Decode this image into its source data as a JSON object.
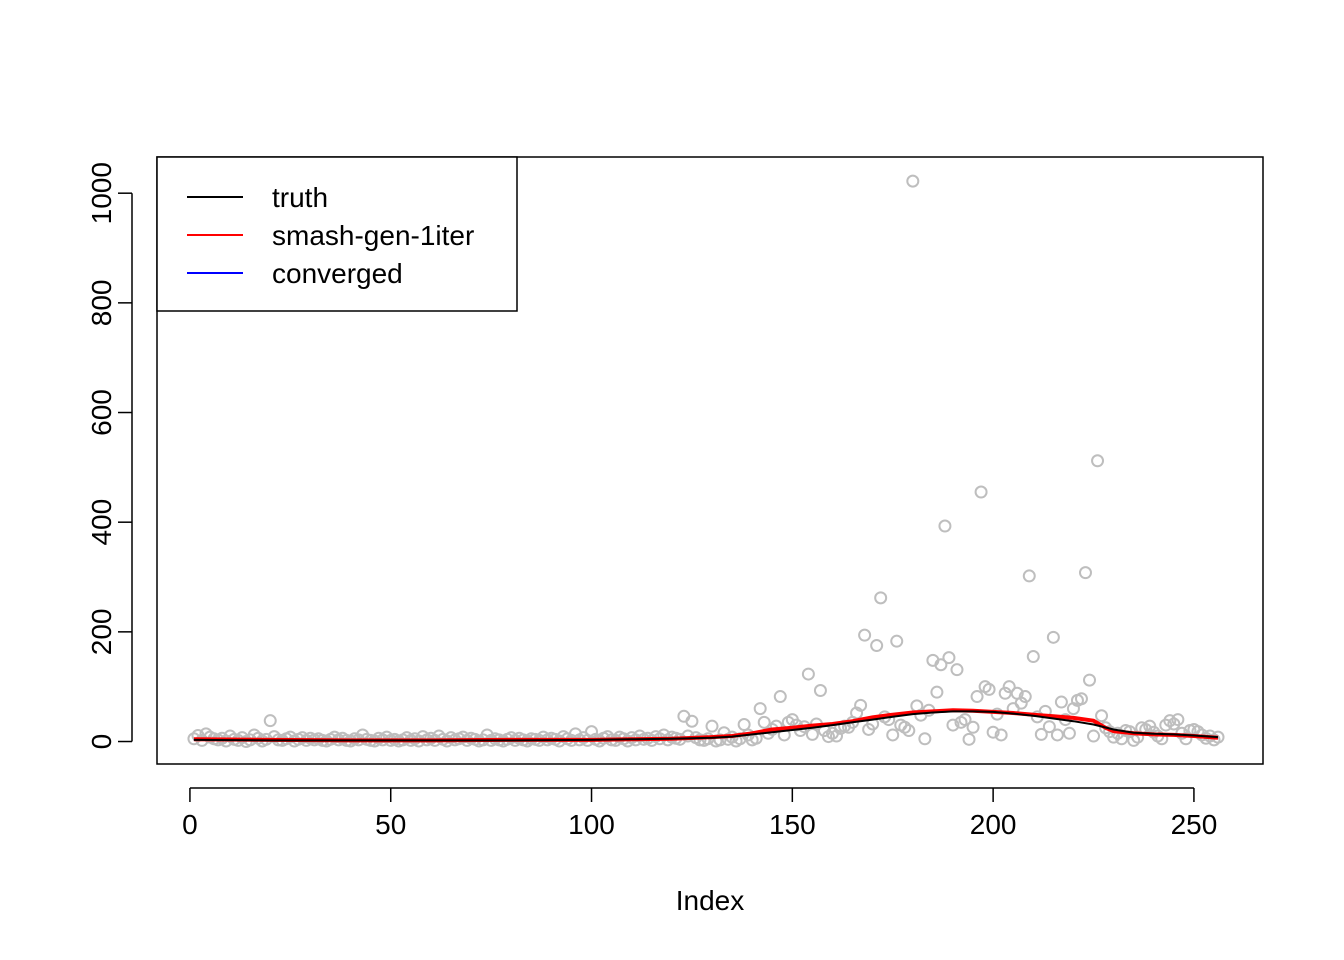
{
  "chart_data": {
    "type": "scatter",
    "title": "",
    "xlabel": "Index",
    "ylabel": "",
    "xlim": [
      -8.2,
      267.2
    ],
    "ylim": [
      -41,
      1066
    ],
    "x_ticks": [
      0,
      50,
      100,
      150,
      200,
      250
    ],
    "y_ticks": [
      0,
      200,
      400,
      600,
      800,
      1000
    ],
    "grid": false,
    "legend_position": "top-left",
    "colors": {
      "points": "#bebebe",
      "truth": "#000000",
      "smash": "#ff0000",
      "converged": "#0000ff"
    },
    "points": {
      "x": [
        1,
        2,
        3,
        4,
        5,
        6,
        7,
        8,
        9,
        10,
        11,
        12,
        13,
        14,
        15,
        16,
        17,
        18,
        19,
        20,
        21,
        22,
        23,
        24,
        25,
        26,
        27,
        28,
        29,
        30,
        31,
        32,
        33,
        34,
        35,
        36,
        37,
        38,
        39,
        40,
        41,
        42,
        43,
        44,
        45,
        46,
        47,
        48,
        49,
        50,
        51,
        52,
        53,
        54,
        55,
        56,
        57,
        58,
        59,
        60,
        61,
        62,
        63,
        64,
        65,
        66,
        67,
        68,
        69,
        70,
        71,
        72,
        73,
        74,
        75,
        76,
        77,
        78,
        79,
        80,
        81,
        82,
        83,
        84,
        85,
        86,
        87,
        88,
        89,
        90,
        91,
        92,
        93,
        94,
        95,
        96,
        97,
        98,
        99,
        100,
        101,
        102,
        103,
        104,
        105,
        106,
        107,
        108,
        109,
        110,
        111,
        112,
        113,
        114,
        115,
        116,
        117,
        118,
        119,
        120,
        121,
        122,
        123,
        124,
        125,
        126,
        127,
        128,
        129,
        130,
        131,
        132,
        133,
        134,
        135,
        136,
        137,
        138,
        139,
        140,
        141,
        142,
        143,
        144,
        145,
        146,
        147,
        148,
        149,
        150,
        151,
        152,
        153,
        154,
        155,
        156,
        157,
        158,
        159,
        160,
        161,
        162,
        163,
        164,
        165,
        166,
        167,
        168,
        169,
        170,
        171,
        172,
        173,
        174,
        175,
        176,
        177,
        178,
        179,
        180,
        181,
        182,
        183,
        184,
        185,
        186,
        187,
        188,
        189,
        190,
        191,
        192,
        193,
        194,
        195,
        196,
        197,
        198,
        199,
        200,
        201,
        202,
        203,
        204,
        205,
        206,
        207,
        208,
        209,
        210,
        211,
        212,
        213,
        214,
        215,
        216,
        217,
        218,
        219,
        220,
        221,
        222,
        223,
        224,
        225,
        226,
        227,
        228,
        229,
        230,
        231,
        232,
        233,
        234,
        235,
        236,
        237,
        238,
        239,
        240,
        241,
        242,
        243,
        244,
        245,
        246,
        247,
        248,
        249,
        250,
        251,
        252,
        253,
        254,
        255,
        256
      ],
      "y": [
        5,
        11,
        2,
        14,
        8,
        5,
        3,
        6,
        1,
        10,
        4,
        2,
        7,
        0,
        3,
        12,
        6,
        1,
        4,
        38,
        9,
        3,
        2,
        5,
        8,
        1,
        4,
        7,
        2,
        6,
        3,
        5,
        2,
        1,
        4,
        8,
        3,
        6,
        2,
        1,
        5,
        3,
        12,
        4,
        2,
        1,
        6,
        3,
        8,
        2,
        4,
        1,
        3,
        7,
        2,
        5,
        1,
        9,
        3,
        6,
        2,
        10,
        4,
        1,
        7,
        3,
        5,
        8,
        2,
        6,
        4,
        1,
        3,
        12,
        2,
        5,
        3,
        1,
        4,
        7,
        2,
        6,
        3,
        1,
        5,
        4,
        2,
        8,
        3,
        6,
        4,
        1,
        9,
        5,
        2,
        14,
        3,
        7,
        2,
        18,
        4,
        1,
        6,
        9,
        3,
        2,
        8,
        5,
        1,
        7,
        3,
        10,
        4,
        6,
        2,
        9,
        5,
        12,
        3,
        8,
        6,
        4,
        46,
        10,
        37,
        7,
        3,
        2,
        5,
        28,
        1,
        3,
        16,
        4,
        8,
        1,
        5,
        31,
        12,
        3,
        6,
        60,
        35,
        15,
        22,
        28,
        82,
        12,
        35,
        40,
        30,
        20,
        27,
        123,
        13,
        32,
        93,
        20,
        9,
        15,
        10,
        24,
        28,
        26,
        35,
        52,
        66,
        194,
        22,
        32,
        175,
        262,
        45,
        40,
        12,
        183,
        30,
        26,
        20,
        1022,
        65,
        48,
        5,
        57,
        148,
        90,
        140,
        393,
        153,
        30,
        131,
        35,
        40,
        4,
        26,
        82,
        455,
        100,
        95,
        17,
        50,
        12,
        88,
        100,
        60,
        88,
        70,
        82,
        302,
        155,
        45,
        13,
        55,
        27,
        190,
        12,
        72,
        40,
        15,
        60,
        75,
        78,
        308,
        112,
        10,
        512,
        47,
        25,
        18,
        8,
        15,
        5,
        20,
        18,
        2,
        8,
        25,
        22,
        28,
        17,
        10,
        5,
        30,
        38,
        32,
        40,
        15,
        5,
        20,
        22,
        18,
        12,
        6,
        10,
        3,
        8
      ]
    },
    "series": [
      {
        "name": "truth",
        "x": [
          1,
          20,
          40,
          60,
          80,
          100,
          110,
          120,
          130,
          135,
          140,
          145,
          150,
          155,
          160,
          165,
          170,
          175,
          180,
          185,
          190,
          195,
          200,
          205,
          210,
          215,
          220,
          225,
          230,
          235,
          240,
          245,
          250,
          256
        ],
        "y": [
          3,
          2,
          2,
          2,
          2,
          3,
          4,
          5,
          7,
          9,
          13,
          17,
          21,
          25,
          30,
          35,
          40,
          45,
          50,
          53,
          55,
          55,
          54,
          51,
          47,
          42,
          37,
          31,
          22,
          16,
          14,
          13,
          11,
          8
        ]
      },
      {
        "name": "smash-gen-1iter",
        "x": [
          1,
          20,
          40,
          60,
          80,
          100,
          110,
          120,
          130,
          135,
          140,
          145,
          150,
          155,
          160,
          165,
          170,
          175,
          180,
          185,
          190,
          195,
          200,
          205,
          210,
          215,
          220,
          225,
          228,
          230,
          235,
          240,
          245,
          250,
          256
        ],
        "y": [
          4,
          3,
          2,
          2,
          3,
          3,
          4,
          5,
          8,
          10,
          15,
          22,
          25,
          29,
          32,
          37,
          44,
          49,
          53,
          55,
          57,
          56,
          54,
          52,
          49,
          46,
          43,
          38,
          25,
          19,
          15,
          13,
          12,
          10,
          7
        ]
      },
      {
        "name": "converged",
        "x": [
          1,
          20,
          40,
          60,
          80,
          100,
          110,
          120,
          130,
          135,
          140,
          145,
          150,
          155,
          160,
          165,
          170,
          175,
          180,
          185,
          190,
          195,
          200,
          205,
          210,
          215,
          220,
          225,
          228,
          230,
          235,
          240,
          245,
          250,
          256
        ],
        "y": [
          3,
          2,
          1,
          1,
          2,
          3,
          4,
          5,
          7,
          10,
          14,
          21,
          24,
          28,
          31,
          36,
          43,
          48,
          52,
          54,
          56,
          55,
          53,
          51,
          48,
          45,
          42,
          37,
          24,
          18,
          14,
          12,
          11,
          9,
          6
        ]
      }
    ]
  }
}
